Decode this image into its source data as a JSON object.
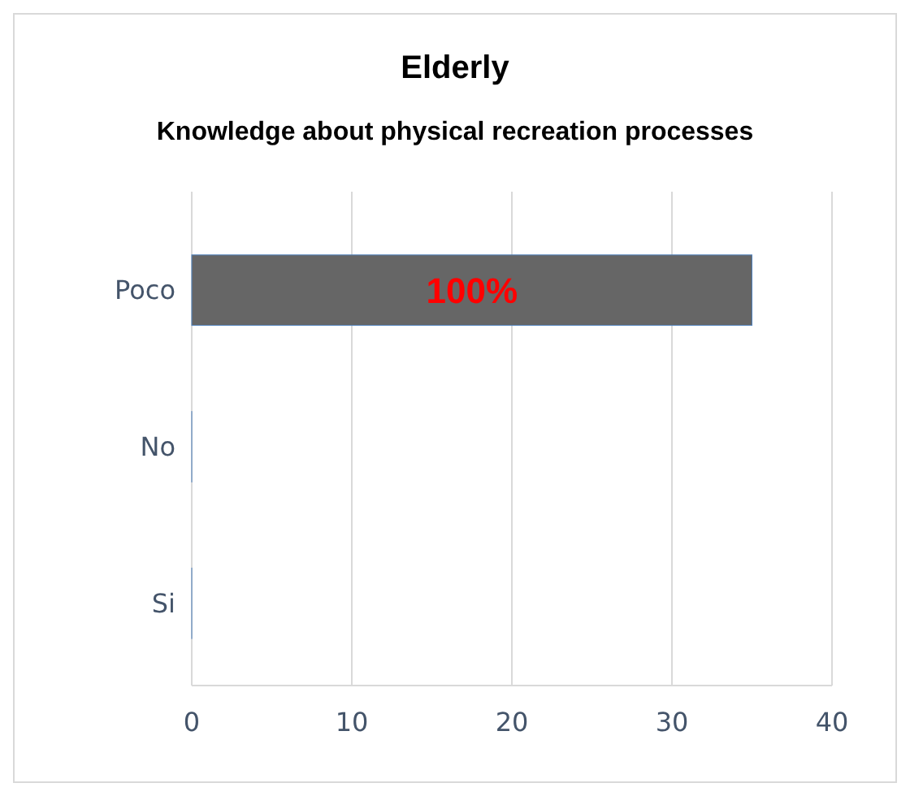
{
  "chart_data": {
    "type": "bar",
    "orientation": "horizontal",
    "title": "Elderly",
    "subtitle": "Knowledge about physical recreation processes",
    "categories": [
      "Poco",
      "No",
      "Si"
    ],
    "values": [
      35,
      0,
      0
    ],
    "color": "#666666",
    "annotations": [
      "100%"
    ],
    "xlim": [
      0,
      40
    ],
    "xticks": [
      0,
      10,
      20,
      30,
      40
    ],
    "grid": "x"
  }
}
